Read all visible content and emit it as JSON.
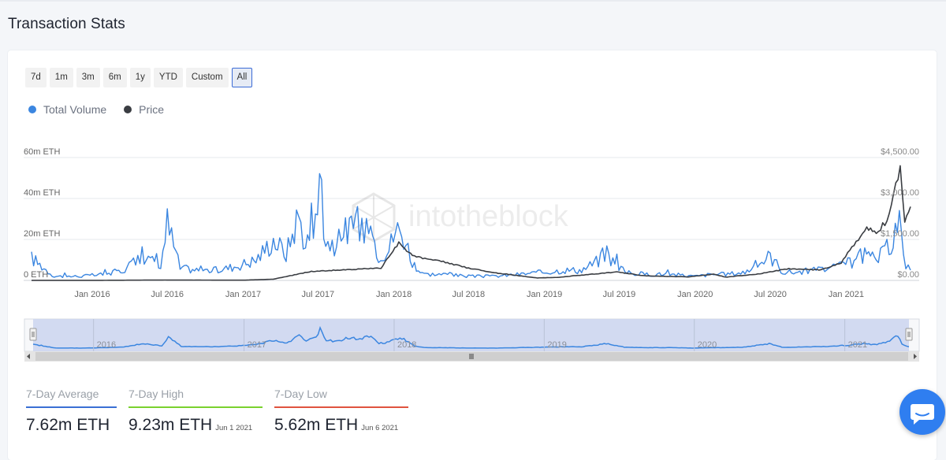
{
  "page_title": "Transaction Stats",
  "range_buttons": [
    {
      "label": "7d",
      "active": false
    },
    {
      "label": "1m",
      "active": false
    },
    {
      "label": "3m",
      "active": false
    },
    {
      "label": "6m",
      "active": false
    },
    {
      "label": "1y",
      "active": false
    },
    {
      "label": "YTD",
      "active": false
    },
    {
      "label": "Custom",
      "active": false
    },
    {
      "label": "All",
      "active": true
    }
  ],
  "watermark": "intotheblock",
  "navigator": {
    "year_labels": [
      "2016",
      "2017",
      "2018",
      "2019",
      "2020",
      "2021"
    ]
  },
  "stats": [
    {
      "label": "7-Day Average",
      "value": "7.62m ETH",
      "date": "",
      "color": "#3a6fd4"
    },
    {
      "label": "7-Day High",
      "value": "9.23m ETH",
      "date": "Jun 1 2021",
      "color": "#7ad12e"
    },
    {
      "label": "7-Day Low",
      "value": "5.62m ETH",
      "date": "Jun 6 2021",
      "color": "#e0533f"
    }
  ],
  "colors": {
    "volume": "#3b86e0",
    "price": "#3a3d42",
    "navigator_fill": "#cbd5ee",
    "accent": "#3b6bd6"
  },
  "icons": {
    "chat": "chat-bubble-icon",
    "scroll_left": "arrow-left-icon",
    "scroll_right": "arrow-right-icon",
    "grip": "grip-icon"
  },
  "chart_data": {
    "type": "line",
    "x_tick_labels": [
      "Jan 2016",
      "Jul 2016",
      "Jan 2017",
      "Jul 2017",
      "Jan 2018",
      "Jul 2018",
      "Jan 2019",
      "Jul 2019",
      "Jan 2020",
      "Jul 2020",
      "Jan 2021"
    ],
    "y_left_ticks": [
      "0 ETH",
      "20m ETH",
      "40m ETH",
      "60m ETH"
    ],
    "y_right_ticks": [
      "$0.00",
      "$1,500.00",
      "$3,000.00",
      "$4,500.00"
    ],
    "y_left_range": [
      0,
      60
    ],
    "y_right_range": [
      0,
      4500
    ],
    "x_range": [
      "2015-08-07",
      "2021-06-06"
    ],
    "series": [
      {
        "name": "Total Volume",
        "axis": "left",
        "unit": "m ETH",
        "x": [
          "2015-08-07",
          "2015-10-01",
          "2015-12-01",
          "2016-02-01",
          "2016-03-15",
          "2016-05-01",
          "2016-06-15",
          "2016-07-01",
          "2016-08-01",
          "2016-09-15",
          "2016-11-01",
          "2016-12-15",
          "2017-02-01",
          "2017-03-15",
          "2017-04-15",
          "2017-05-15",
          "2017-06-01",
          "2017-06-20",
          "2017-07-05",
          "2017-07-20",
          "2017-08-15",
          "2017-09-01",
          "2017-09-20",
          "2017-10-10",
          "2017-11-01",
          "2017-11-25",
          "2017-12-20",
          "2018-01-05",
          "2018-01-25",
          "2018-02-20",
          "2018-03-20",
          "2018-05-01",
          "2018-07-01",
          "2018-09-01",
          "2018-11-01",
          "2019-01-01",
          "2019-02-15",
          "2019-04-01",
          "2019-06-01",
          "2019-07-15",
          "2019-09-01",
          "2019-11-01",
          "2020-01-01",
          "2020-02-15",
          "2020-03-15",
          "2020-05-01",
          "2020-07-01",
          "2020-08-01",
          "2020-09-01",
          "2020-10-15",
          "2020-12-01",
          "2021-01-15",
          "2021-02-15",
          "2021-03-15",
          "2021-04-15",
          "2021-05-10",
          "2021-05-20",
          "2021-06-06"
        ],
        "values": [
          11,
          2,
          2,
          3,
          5,
          12,
          7,
          28,
          6,
          5,
          5,
          7,
          10,
          20,
          13,
          32,
          18,
          24,
          44,
          20,
          17,
          23,
          26,
          22,
          29,
          13,
          15,
          25,
          22,
          6,
          3,
          3,
          2,
          2,
          3,
          4,
          5,
          5,
          12,
          4,
          3,
          3,
          2,
          3,
          3,
          4,
          12,
          4,
          4,
          5,
          6,
          9,
          12,
          10,
          16,
          30,
          10,
          5
        ]
      },
      {
        "name": "Price",
        "axis": "right",
        "unit": "USD",
        "x": [
          "2015-08-07",
          "2016-01-01",
          "2016-06-15",
          "2017-01-01",
          "2017-03-15",
          "2017-06-15",
          "2017-09-01",
          "2017-12-01",
          "2018-01-13",
          "2018-02-15",
          "2018-05-01",
          "2018-07-01",
          "2018-09-01",
          "2018-12-15",
          "2019-02-01",
          "2019-06-25",
          "2019-09-01",
          "2019-12-15",
          "2020-02-15",
          "2020-03-15",
          "2020-06-01",
          "2020-08-15",
          "2020-11-01",
          "2020-12-20",
          "2021-01-15",
          "2021-02-20",
          "2021-03-15",
          "2021-04-10",
          "2021-05-12",
          "2021-05-23",
          "2021-06-06"
        ],
        "values": [
          2,
          1,
          14,
          8,
          45,
          330,
          390,
          450,
          1380,
          900,
          680,
          450,
          280,
          90,
          110,
          310,
          170,
          130,
          230,
          120,
          230,
          430,
          380,
          640,
          1200,
          1950,
          1700,
          2100,
          4170,
          2100,
          2700
        ]
      }
    ]
  }
}
